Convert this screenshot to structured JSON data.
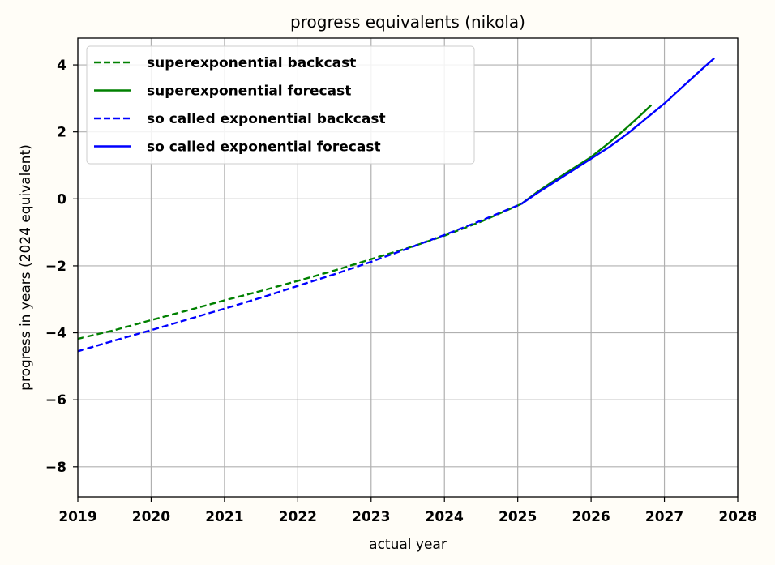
{
  "chart_data": {
    "type": "line",
    "title": "progress equivalents (nikola)",
    "xlabel": "actual year",
    "ylabel": "progress in years (2024 equivalent)",
    "xlim": [
      2019,
      2028
    ],
    "ylim": [
      -8.9,
      4.8
    ],
    "xticks": [
      2019,
      2020,
      2021,
      2022,
      2023,
      2024,
      2025,
      2026,
      2027,
      2028
    ],
    "yticks": [
      -8,
      -6,
      -4,
      -2,
      0,
      2,
      4
    ],
    "ytick_labels": [
      "−8",
      "−6",
      "−4",
      "−2",
      "0",
      "2",
      "4"
    ],
    "grid": true,
    "legend_position": "upper-left",
    "series": [
      {
        "name": "superexponential backcast",
        "color": "#008000",
        "dash": true,
        "x": [
          2019.0,
          2019.5,
          2020.0,
          2020.5,
          2021.0,
          2021.5,
          2022.0,
          2022.5,
          2023.0,
          2023.5,
          2024.0,
          2024.5,
          2025.05
        ],
        "y": [
          -4.18,
          -3.92,
          -3.62,
          -3.33,
          -3.03,
          -2.75,
          -2.45,
          -2.14,
          -1.8,
          -1.47,
          -1.1,
          -0.68,
          -0.15
        ]
      },
      {
        "name": "superexponential forecast",
        "color": "#008000",
        "dash": false,
        "x": [
          2025.05,
          2025.25,
          2025.5,
          2025.75,
          2026.0,
          2026.25,
          2026.5,
          2026.7,
          2026.82
        ],
        "y": [
          -0.15,
          0.18,
          0.55,
          0.9,
          1.25,
          1.68,
          2.15,
          2.55,
          2.8
        ]
      },
      {
        "name": "so called exponential backcast",
        "color": "#0000ff",
        "dash": true,
        "x": [
          2019.0,
          2019.5,
          2020.0,
          2020.5,
          2021.0,
          2021.5,
          2022.0,
          2022.5,
          2023.0,
          2023.5,
          2024.0,
          2024.5,
          2025.05
        ],
        "y": [
          -4.55,
          -4.23,
          -3.92,
          -3.6,
          -3.28,
          -2.95,
          -2.6,
          -2.25,
          -1.88,
          -1.48,
          -1.08,
          -0.65,
          -0.15
        ]
      },
      {
        "name": "so called exponential forecast",
        "color": "#0000ff",
        "dash": false,
        "x": [
          2025.05,
          2025.25,
          2025.5,
          2025.75,
          2026.0,
          2026.25,
          2026.5,
          2026.75,
          2027.0,
          2027.25,
          2027.5,
          2027.68
        ],
        "y": [
          -0.15,
          0.15,
          0.5,
          0.85,
          1.2,
          1.55,
          1.95,
          2.4,
          2.85,
          3.35,
          3.85,
          4.2
        ]
      }
    ]
  }
}
